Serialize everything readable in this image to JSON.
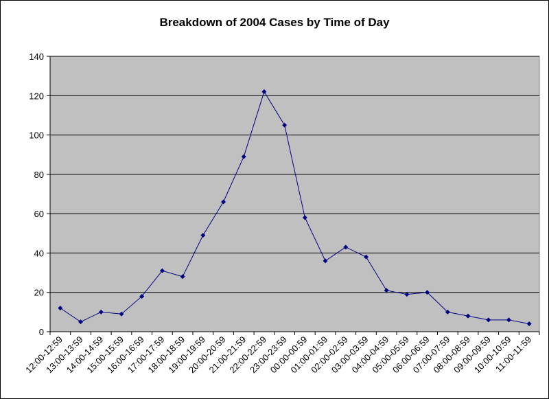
{
  "chart_data": {
    "type": "line",
    "title": "Breakdown of 2004 Cases by Time of Day",
    "xlabel": "",
    "ylabel": "",
    "ylim": [
      0,
      140
    ],
    "y_ticks": [
      0,
      20,
      40,
      60,
      80,
      100,
      120,
      140
    ],
    "grid": true,
    "legend": "none",
    "colors": {
      "plot_background": "#c0c0c0",
      "series": "#000080",
      "gridline": "#000000"
    },
    "categories": [
      "12:00-12:59",
      "13:00-13:59",
      "14:00-14:59",
      "15:00-15:59",
      "16:00-16:59",
      "17:00-17:59",
      "18:00-18:59",
      "19:00-19:59",
      "20:00-20:59",
      "21:00-21:59",
      "22:00-22:59",
      "23:00-23:59",
      "00:00-00:59",
      "01:00-01:59",
      "02:00-02:59",
      "03:00-03:59",
      "04:00-04:59",
      "05:00-05:59",
      "06:00-06:59",
      "07:00-07:59",
      "08:00-08:59",
      "09:00-09:59",
      "10:00-10:59",
      "11:00-11:59"
    ],
    "series": [
      {
        "values": [
          12,
          5,
          10,
          9,
          18,
          31,
          28,
          49,
          66,
          89,
          122,
          105,
          58,
          36,
          43,
          38,
          21,
          19,
          20,
          10,
          8,
          6,
          6,
          4
        ]
      }
    ]
  }
}
